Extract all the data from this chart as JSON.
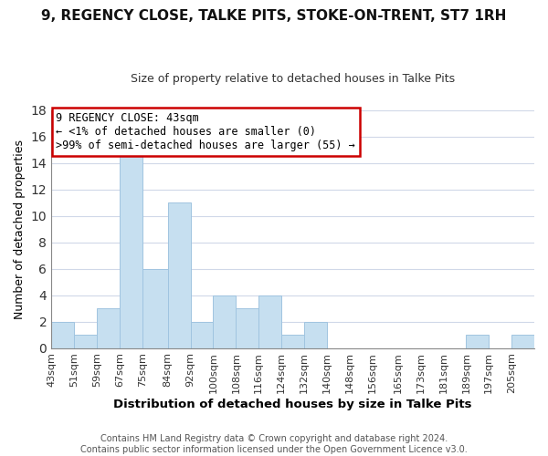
{
  "title": "9, REGENCY CLOSE, TALKE PITS, STOKE-ON-TRENT, ST7 1RH",
  "subtitle": "Size of property relative to detached houses in Talke Pits",
  "xlabel": "Distribution of detached houses by size in Talke Pits",
  "ylabel": "Number of detached properties",
  "footer_line1": "Contains HM Land Registry data © Crown copyright and database right 2024.",
  "footer_line2": "Contains public sector information licensed under the Open Government Licence v3.0.",
  "bin_labels": [
    "43sqm",
    "51sqm",
    "59sqm",
    "67sqm",
    "75sqm",
    "84sqm",
    "92sqm",
    "100sqm",
    "108sqm",
    "116sqm",
    "124sqm",
    "132sqm",
    "140sqm",
    "148sqm",
    "156sqm",
    "165sqm",
    "173sqm",
    "181sqm",
    "189sqm",
    "197sqm",
    "205sqm"
  ],
  "bin_edges": [
    43,
    51,
    59,
    67,
    75,
    84,
    92,
    100,
    108,
    116,
    124,
    132,
    140,
    148,
    156,
    165,
    173,
    181,
    189,
    197,
    205,
    213
  ],
  "bar_heights": [
    2,
    1,
    3,
    15,
    6,
    11,
    2,
    4,
    3,
    4,
    1,
    2,
    0,
    0,
    0,
    0,
    0,
    0,
    1,
    0,
    1
  ],
  "bar_color": "#c6dff0",
  "bar_edge_color": "#a0c4e0",
  "ylim": [
    0,
    18
  ],
  "yticks": [
    0,
    2,
    4,
    6,
    8,
    10,
    12,
    14,
    16,
    18
  ],
  "annotation_title": "9 REGENCY CLOSE: 43sqm",
  "annotation_line2": "← <1% of detached houses are smaller (0)",
  "annotation_line3": ">99% of semi-detached houses are larger (55) →",
  "background_color": "#ffffff",
  "grid_color": "#d0d8e8",
  "title_fontsize": 11,
  "subtitle_fontsize": 9,
  "ylabel_fontsize": 9,
  "xlabel_fontsize": 9.5,
  "tick_fontsize": 8,
  "footer_fontsize": 7,
  "ann_fontsize": 8.5
}
